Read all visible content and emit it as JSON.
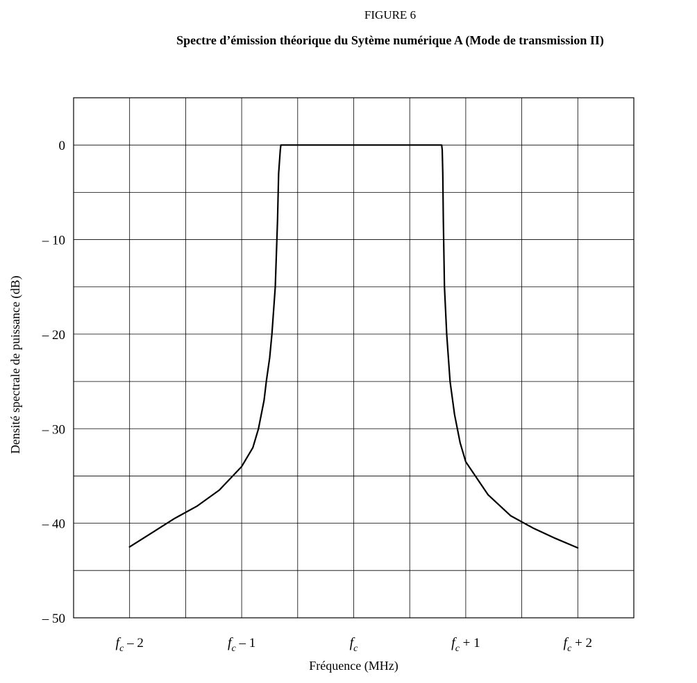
{
  "figure": {
    "label": "FIGURE 6",
    "title": "Spectre d’émission théorique du Sytème numérique A (Mode de transmission II)"
  },
  "chart_data": {
    "type": "line",
    "title": "Spectre d’émission théorique du Sytème numérique A (Mode de transmission II)",
    "xlabel": "Fréquence (MHz)",
    "ylabel": "Densité spectrale de puissance (dB)",
    "xlim": [
      -2.5,
      2.5
    ],
    "ylim": [
      -50,
      5
    ],
    "grid": true,
    "x_tick_values": [
      -2,
      -1,
      0,
      1,
      2
    ],
    "x_tick_labels": [
      {
        "base": "f",
        "sub": "c",
        "suffix": " – 2"
      },
      {
        "base": "f",
        "sub": "c",
        "suffix": " – 1"
      },
      {
        "base": "f",
        "sub": "c",
        "suffix": ""
      },
      {
        "base": "f",
        "sub": "c",
        "suffix": " + 1"
      },
      {
        "base": "f",
        "sub": "c",
        "suffix": " + 2"
      }
    ],
    "y_ticks": [
      0,
      -10,
      -20,
      -30,
      -40,
      -50
    ],
    "y_tick_labels": [
      "0",
      "– 10",
      "– 20",
      "– 30",
      "– 40",
      "– 50"
    ],
    "series": [
      {
        "x": [
          -2.0,
          -1.8,
          -1.6,
          -1.4,
          -1.2,
          -1.0,
          -0.9,
          -0.85,
          -0.8,
          -0.78,
          -0.75,
          -0.73,
          -0.7,
          -0.68,
          -0.67,
          -0.655,
          -0.65,
          -0.6,
          0.0,
          0.74,
          0.785,
          0.79,
          0.795,
          0.8,
          0.81,
          0.83,
          0.86,
          0.9,
          0.95,
          1.0,
          1.2,
          1.4,
          1.6,
          1.8,
          2.0
        ],
        "y": [
          -42.5,
          -41.0,
          -39.5,
          -38.2,
          -36.5,
          -34.0,
          -32.0,
          -30.0,
          -27.0,
          -25.0,
          -22.5,
          -20.0,
          -15.0,
          -8.0,
          -3.0,
          -0.5,
          0.0,
          0.0,
          0.0,
          0.0,
          0.0,
          -0.5,
          -3.0,
          -8.0,
          -15.0,
          -20.0,
          -25.0,
          -28.5,
          -31.5,
          -33.5,
          -37.0,
          -39.2,
          -40.5,
          -41.6,
          -42.6
        ]
      }
    ]
  }
}
